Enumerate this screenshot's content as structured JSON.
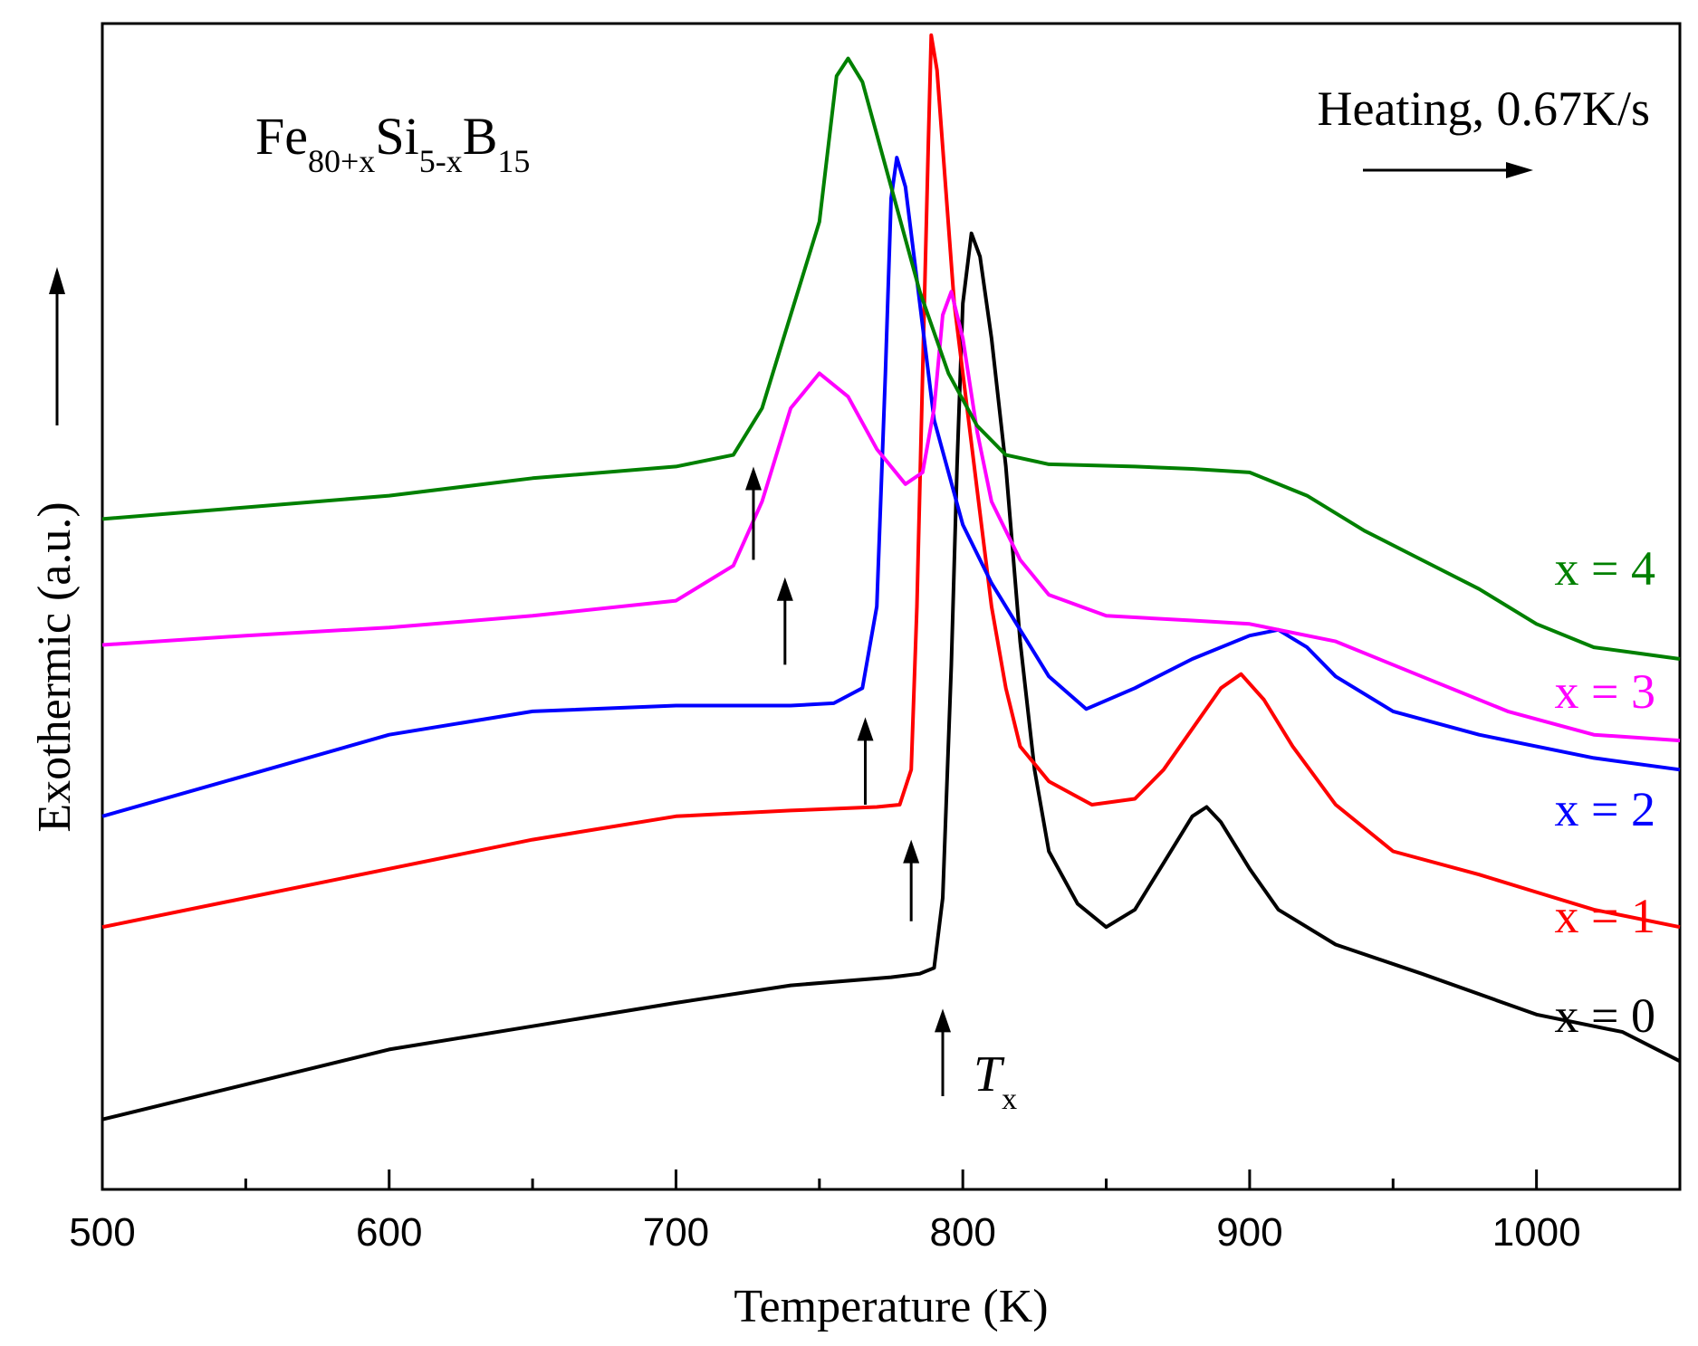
{
  "chart_data": {
    "type": "line",
    "title": "",
    "xlabel": "Temperature (K)",
    "ylabel": "Exothermic (a.u.)",
    "xlim": [
      500,
      1050
    ],
    "ylim": [
      0,
      10
    ],
    "x_ticks": [
      "500",
      "600",
      "700",
      "800",
      "900",
      "1000"
    ],
    "x_tick_values": [
      500,
      600,
      700,
      800,
      900,
      1000
    ],
    "x_minor_ticks": [
      550,
      650,
      750,
      850,
      950
    ],
    "y_ticks": [],
    "grid": false,
    "composition": {
      "base": "Fe",
      "s1": "80+x",
      "e2": "Si",
      "s2": "5-x",
      "e3": "B",
      "s3": "15"
    },
    "heating_label": "Heating, 0.67K/s",
    "tx_label": {
      "main": "T",
      "sub": "x"
    },
    "series": [
      {
        "name": "x = 0",
        "color": "#000000",
        "points": [
          [
            500,
            0.6
          ],
          [
            550,
            0.9
          ],
          [
            600,
            1.2
          ],
          [
            650,
            1.4
          ],
          [
            700,
            1.6
          ],
          [
            740,
            1.75
          ],
          [
            775,
            1.82
          ],
          [
            785,
            1.85
          ],
          [
            790,
            1.9
          ],
          [
            793,
            2.5
          ],
          [
            796,
            4.5
          ],
          [
            798,
            6.2
          ],
          [
            800,
            7.6
          ],
          [
            803,
            8.2
          ],
          [
            806,
            8.0
          ],
          [
            810,
            7.3
          ],
          [
            815,
            6.2
          ],
          [
            820,
            4.7
          ],
          [
            825,
            3.6
          ],
          [
            830,
            2.9
          ],
          [
            840,
            2.45
          ],
          [
            850,
            2.25
          ],
          [
            860,
            2.4
          ],
          [
            870,
            2.8
          ],
          [
            880,
            3.2
          ],
          [
            885,
            3.28
          ],
          [
            890,
            3.15
          ],
          [
            900,
            2.75
          ],
          [
            910,
            2.4
          ],
          [
            930,
            2.1
          ],
          [
            960,
            1.85
          ],
          [
            1000,
            1.5
          ],
          [
            1030,
            1.35
          ],
          [
            1050,
            1.1
          ]
        ]
      },
      {
        "name": "x = 1",
        "color": "#ff0000",
        "points": [
          [
            500,
            2.25
          ],
          [
            550,
            2.5
          ],
          [
            600,
            2.75
          ],
          [
            650,
            3.0
          ],
          [
            700,
            3.2
          ],
          [
            740,
            3.25
          ],
          [
            770,
            3.28
          ],
          [
            778,
            3.3
          ],
          [
            782,
            3.6
          ],
          [
            784,
            5.0
          ],
          [
            786,
            7.0
          ],
          [
            788,
            9.0
          ],
          [
            789,
            9.9
          ],
          [
            791,
            9.6
          ],
          [
            794,
            8.6
          ],
          [
            797,
            7.6
          ],
          [
            800,
            7.0
          ],
          [
            805,
            6.0
          ],
          [
            810,
            5.0
          ],
          [
            815,
            4.3
          ],
          [
            820,
            3.8
          ],
          [
            830,
            3.5
          ],
          [
            845,
            3.3
          ],
          [
            860,
            3.35
          ],
          [
            870,
            3.6
          ],
          [
            880,
            3.95
          ],
          [
            890,
            4.3
          ],
          [
            897,
            4.42
          ],
          [
            905,
            4.2
          ],
          [
            915,
            3.8
          ],
          [
            930,
            3.3
          ],
          [
            950,
            2.9
          ],
          [
            980,
            2.7
          ],
          [
            1000,
            2.55
          ],
          [
            1020,
            2.4
          ],
          [
            1050,
            2.25
          ]
        ]
      },
      {
        "name": "x = 2",
        "color": "#0000ff",
        "points": [
          [
            500,
            3.2
          ],
          [
            550,
            3.55
          ],
          [
            600,
            3.9
          ],
          [
            650,
            4.1
          ],
          [
            700,
            4.15
          ],
          [
            740,
            4.15
          ],
          [
            755,
            4.17
          ],
          [
            765,
            4.3
          ],
          [
            770,
            5.0
          ],
          [
            773,
            7.0
          ],
          [
            775,
            8.5
          ],
          [
            777,
            8.85
          ],
          [
            780,
            8.6
          ],
          [
            785,
            7.6
          ],
          [
            790,
            6.6
          ],
          [
            800,
            5.7
          ],
          [
            810,
            5.2
          ],
          [
            820,
            4.8
          ],
          [
            830,
            4.4
          ],
          [
            843,
            4.12
          ],
          [
            860,
            4.3
          ],
          [
            880,
            4.55
          ],
          [
            900,
            4.75
          ],
          [
            910,
            4.8
          ],
          [
            920,
            4.65
          ],
          [
            930,
            4.4
          ],
          [
            950,
            4.1
          ],
          [
            980,
            3.9
          ],
          [
            1000,
            3.8
          ],
          [
            1020,
            3.7
          ],
          [
            1050,
            3.6
          ]
        ]
      },
      {
        "name": "x = 3",
        "color": "#ff00ff",
        "points": [
          [
            500,
            4.67
          ],
          [
            550,
            4.75
          ],
          [
            600,
            4.82
          ],
          [
            650,
            4.92
          ],
          [
            700,
            5.05
          ],
          [
            720,
            5.35
          ],
          [
            730,
            5.9
          ],
          [
            740,
            6.7
          ],
          [
            750,
            7.0
          ],
          [
            760,
            6.8
          ],
          [
            770,
            6.35
          ],
          [
            780,
            6.05
          ],
          [
            786,
            6.15
          ],
          [
            790,
            6.7
          ],
          [
            793,
            7.5
          ],
          [
            796,
            7.7
          ],
          [
            800,
            7.3
          ],
          [
            805,
            6.5
          ],
          [
            810,
            5.9
          ],
          [
            820,
            5.4
          ],
          [
            830,
            5.1
          ],
          [
            850,
            4.92
          ],
          [
            880,
            4.88
          ],
          [
            900,
            4.85
          ],
          [
            930,
            4.7
          ],
          [
            960,
            4.4
          ],
          [
            990,
            4.1
          ],
          [
            1020,
            3.9
          ],
          [
            1050,
            3.85
          ]
        ]
      },
      {
        "name": "x = 4",
        "color": "#008000",
        "points": [
          [
            500,
            5.75
          ],
          [
            550,
            5.85
          ],
          [
            600,
            5.95
          ],
          [
            650,
            6.1
          ],
          [
            700,
            6.2
          ],
          [
            720,
            6.3
          ],
          [
            730,
            6.7
          ],
          [
            740,
            7.5
          ],
          [
            750,
            8.3
          ],
          [
            756,
            9.55
          ],
          [
            760,
            9.7
          ],
          [
            765,
            9.5
          ],
          [
            775,
            8.6
          ],
          [
            785,
            7.7
          ],
          [
            795,
            7.0
          ],
          [
            805,
            6.55
          ],
          [
            815,
            6.3
          ],
          [
            830,
            6.22
          ],
          [
            860,
            6.2
          ],
          [
            880,
            6.18
          ],
          [
            900,
            6.15
          ],
          [
            920,
            5.95
          ],
          [
            940,
            5.65
          ],
          [
            960,
            5.4
          ],
          [
            980,
            5.15
          ],
          [
            1000,
            4.85
          ],
          [
            1020,
            4.65
          ],
          [
            1035,
            4.6
          ],
          [
            1050,
            4.55
          ]
        ]
      }
    ],
    "tx_markers": [
      {
        "series": "x = 4",
        "x": 727,
        "y0": 5.4,
        "y1": 6.2
      },
      {
        "series": "x = 3",
        "x": 738,
        "y0": 4.5,
        "y1": 5.25
      },
      {
        "series": "x = 2",
        "x": 766,
        "y0": 3.3,
        "y1": 4.05
      },
      {
        "series": "x = 1",
        "x": 782,
        "y0": 2.3,
        "y1": 3.0
      },
      {
        "series": "x = 0",
        "x": 793,
        "y0": 0.8,
        "y1": 1.55
      }
    ]
  }
}
